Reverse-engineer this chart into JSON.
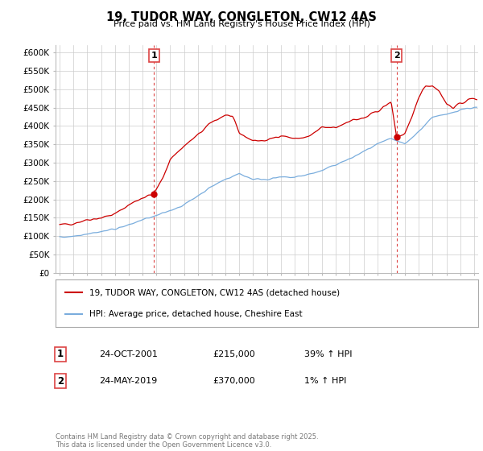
{
  "title": "19, TUDOR WAY, CONGLETON, CW12 4AS",
  "subtitle": "Price paid vs. HM Land Registry's House Price Index (HPI)",
  "ylim": [
    0,
    620000
  ],
  "xlim_start": 1994.7,
  "xlim_end": 2025.3,
  "marker1_x": 2001.82,
  "marker1_y": 215000,
  "marker1_label": "1",
  "marker2_x": 2019.4,
  "marker2_y": 370000,
  "marker2_label": "2",
  "legend_house_label": "19, TUDOR WAY, CONGLETON, CW12 4AS (detached house)",
  "legend_hpi_label": "HPI: Average price, detached house, Cheshire East",
  "annotation1_num": "1",
  "annotation1_date": "24-OCT-2001",
  "annotation1_price": "£215,000",
  "annotation1_hpi": "39% ↑ HPI",
  "annotation2_num": "2",
  "annotation2_date": "24-MAY-2019",
  "annotation2_price": "£370,000",
  "annotation2_hpi": "1% ↑ HPI",
  "copyright_text": "Contains HM Land Registry data © Crown copyright and database right 2025.\nThis data is licensed under the Open Government Licence v3.0.",
  "house_color": "#cc0000",
  "hpi_color": "#7aaddd",
  "marker_line_color": "#dd4444",
  "background_color": "#ffffff",
  "grid_color": "#cccccc",
  "house_keypoints_x": [
    1995,
    1996,
    1997,
    1998,
    1999,
    2000,
    2001,
    2001.82,
    2002.5,
    2003,
    2004,
    2005,
    2006,
    2007,
    2007.5,
    2008,
    2009,
    2010,
    2011,
    2012,
    2013,
    2014,
    2015,
    2016,
    2017,
    2018,
    2019,
    2019.4,
    2019.8,
    2020,
    2020.5,
    2021,
    2021.5,
    2022,
    2022.5,
    2023,
    2023.5,
    2024,
    2024.5,
    2025
  ],
  "house_keypoints_y": [
    130000,
    135000,
    145000,
    150000,
    160000,
    185000,
    205000,
    215000,
    260000,
    310000,
    345000,
    375000,
    410000,
    430000,
    425000,
    380000,
    360000,
    360000,
    375000,
    365000,
    370000,
    395000,
    395000,
    415000,
    420000,
    440000,
    465000,
    370000,
    375000,
    380000,
    420000,
    480000,
    510000,
    510000,
    495000,
    460000,
    450000,
    460000,
    470000,
    475000
  ],
  "hpi_keypoints_x": [
    1995,
    1996,
    1997,
    1998,
    1999,
    2000,
    2001,
    2002,
    2003,
    2004,
    2005,
    2006,
    2007,
    2008,
    2009,
    2010,
    2011,
    2012,
    2013,
    2014,
    2015,
    2016,
    2017,
    2018,
    2019,
    2020,
    2021,
    2022,
    2023,
    2024,
    2025
  ],
  "hpi_keypoints_y": [
    97000,
    100000,
    107000,
    112000,
    120000,
    130000,
    145000,
    155000,
    170000,
    185000,
    210000,
    235000,
    255000,
    270000,
    255000,
    255000,
    260000,
    260000,
    268000,
    278000,
    295000,
    310000,
    330000,
    350000,
    365000,
    350000,
    385000,
    425000,
    430000,
    445000,
    450000
  ]
}
